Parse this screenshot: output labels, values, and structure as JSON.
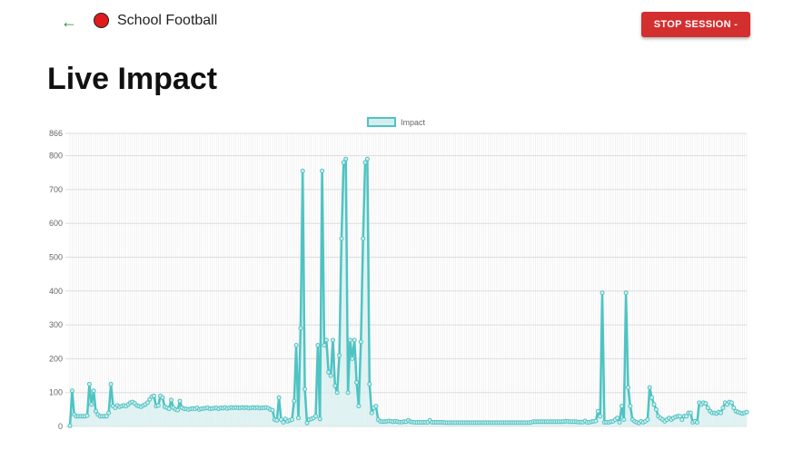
{
  "session": {
    "name": "School Football",
    "status_color": "#e01b1b"
  },
  "back_icon": "arrow-left-icon",
  "stop_button": {
    "label": "STOP SESSION -",
    "color": "#d32f2f"
  },
  "page_title": "Live Impact",
  "chart_data": {
    "type": "area",
    "title": "",
    "xlabel": "",
    "ylabel": "",
    "ylim": [
      0,
      866
    ],
    "y_ticks": [
      0,
      100,
      200,
      300,
      400,
      500,
      600,
      700,
      800,
      866
    ],
    "x_tick_labels_visible": false,
    "grid": true,
    "legend_position": "top-center",
    "series": [
      {
        "name": "Impact",
        "color": "#4fc3c3",
        "fill": "#d4eeee",
        "values": [
          2,
          105,
          35,
          30,
          30,
          30,
          30,
          30,
          32,
          125,
          65,
          105,
          45,
          35,
          30,
          30,
          30,
          30,
          40,
          125,
          60,
          55,
          62,
          58,
          60,
          62,
          60,
          65,
          70,
          72,
          68,
          62,
          60,
          58,
          62,
          65,
          70,
          80,
          88,
          90,
          60,
          62,
          90,
          85,
          58,
          55,
          52,
          78,
          55,
          50,
          48,
          75,
          55,
          52,
          52,
          50,
          52,
          53,
          52,
          55,
          50,
          52,
          53,
          54,
          55,
          52,
          53,
          54,
          55,
          52,
          55,
          54,
          56,
          53,
          55,
          56,
          55,
          56,
          55,
          55,
          56,
          55,
          56,
          54,
          55,
          56,
          55,
          56,
          54,
          55,
          55,
          56,
          54,
          50,
          48,
          20,
          18,
          85,
          20,
          12,
          22,
          15,
          18,
          20,
          75,
          240,
          25,
          290,
          755,
          110,
          10,
          20,
          22,
          25,
          30,
          240,
          22,
          755,
          240,
          255,
          160,
          150,
          255,
          120,
          100,
          210,
          555,
          780,
          790,
          100,
          255,
          200,
          255,
          130,
          60,
          250,
          555,
          780,
          790,
          125,
          40,
          55,
          60,
          20,
          15,
          14,
          14,
          15,
          16,
          15,
          14,
          15,
          14,
          13,
          13,
          14,
          14,
          18,
          14,
          13,
          12,
          12,
          12,
          12,
          12,
          12,
          12,
          18,
          12,
          12,
          12,
          12,
          12,
          12,
          11,
          11,
          11,
          11,
          11,
          11,
          11,
          11,
          11,
          11,
          11,
          11,
          11,
          11,
          11,
          11,
          11,
          11,
          11,
          11,
          11,
          11,
          11,
          11,
          11,
          11,
          11,
          11,
          11,
          11,
          11,
          11,
          11,
          11,
          11,
          11,
          11,
          11,
          11,
          11,
          12,
          14,
          14,
          14,
          14,
          14,
          14,
          14,
          14,
          14,
          14,
          14,
          14,
          14,
          14,
          14,
          15,
          15,
          14,
          14,
          14,
          14,
          13,
          13,
          13,
          16,
          12,
          12,
          14,
          15,
          16,
          45,
          30,
          395,
          12,
          12,
          12,
          14,
          15,
          20,
          25,
          12,
          60,
          20,
          395,
          115,
          60,
          20,
          15,
          12,
          10,
          15,
          12,
          15,
          20,
          115,
          85,
          65,
          50,
          30,
          25,
          20,
          15,
          20,
          25,
          20,
          25,
          28,
          30,
          30,
          20,
          30,
          30,
          40,
          40,
          12,
          15,
          12,
          70,
          65,
          70,
          68,
          55,
          45,
          40,
          40,
          38,
          42,
          40,
          55,
          70,
          65,
          72,
          70,
          55,
          45,
          42,
          40,
          38,
          40,
          42
        ]
      }
    ]
  }
}
